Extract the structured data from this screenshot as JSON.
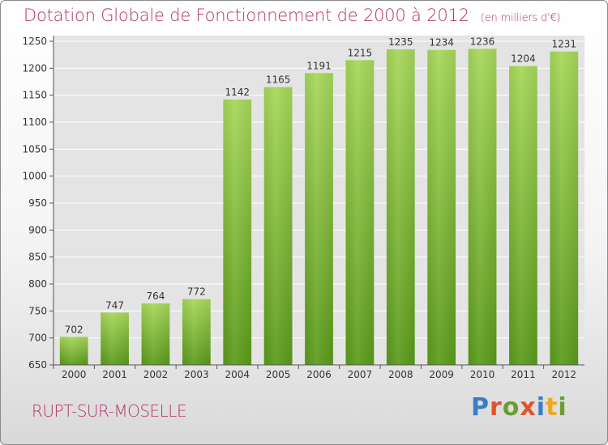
{
  "header": {
    "title": "Dotation Globale de Fonctionnement de 2000 à 2012",
    "unit": "(en milliers d'€)"
  },
  "commune": "RUPT-SUR-MOSELLE",
  "brand": {
    "name": "Proxiti",
    "letter_colors": [
      "#3a7fc4",
      "#e0542a",
      "#6a9e2f",
      "#e0542a",
      "#3a7fc4",
      "#f0a81c",
      "#6a9e2f"
    ]
  },
  "colors": {
    "title": "#b5346a",
    "bar_light": "#a6d75a",
    "bar_dark": "#5a9a1a",
    "plot_bg": "#e4e4e4",
    "grid": "#ffffff",
    "axis_text": "#333333"
  },
  "chart_data": {
    "type": "bar",
    "title": "Dotation Globale de Fonctionnement de 2000 à 2012",
    "subtitle": "(en milliers d'€)",
    "categories": [
      "2000",
      "2001",
      "2002",
      "2003",
      "2004",
      "2005",
      "2006",
      "2007",
      "2008",
      "2009",
      "2010",
      "2011",
      "2012"
    ],
    "values": [
      702,
      747,
      764,
      772,
      1142,
      1165,
      1191,
      1215,
      1235,
      1234,
      1236,
      1204,
      1231
    ],
    "ylim": [
      650,
      1250
    ],
    "yticks": [
      650,
      700,
      750,
      800,
      850,
      900,
      950,
      1000,
      1050,
      1100,
      1150,
      1200,
      1250
    ],
    "grid": true,
    "data_labels": true,
    "legend": "none"
  }
}
